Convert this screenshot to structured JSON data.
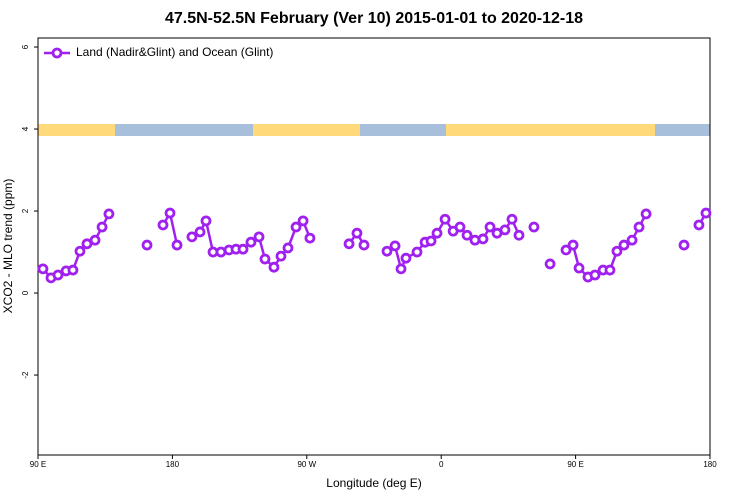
{
  "chart_data": {
    "type": "line",
    "title": "47.5N-52.5N February (Ver 10)   2015-01-01 to 2020-12-18",
    "x_label": "Longitude (deg E)",
    "y_label": "XCO2 - MLO trend (ppm)",
    "x": [
      93.3,
      98.7,
      103.4,
      108.8,
      113.4,
      118.1,
      122.8,
      128.2,
      132.9,
      137.5,
      null,
      163,
      null,
      173.7,
      178.4,
      183.1,
      null,
      193.1,
      198.5,
      202.5,
      207.2,
      212.5,
      217.9,
      222.6,
      227.3,
      232.6,
      238,
      242,
      248,
      252.7,
      257.4,
      262.8,
      267.5,
      272.1,
      null,
      298.3,
      303.6,
      308.3,
      null,
      323.7,
      329.1,
      333.1,
      336.4,
      343.8,
      349.2,
      353.2,
      357.2,
      362.6,
      368,
      372.6,
      377.3,
      382.6,
      388,
      392.7,
      397.4,
      402.7,
      407.4,
      412.1,
      null,
      422.1,
      null,
      432.9,
      null,
      443.6,
      448.3,
      452.3,
      458.3,
      463,
      468.4,
      473,
      477.7,
      482.4,
      487.8,
      492.5,
      497.2,
      null,
      522.6,
      null,
      532.6,
      537.3
    ],
    "series": [
      {
        "name": "Land (Nadir&Glint) and Ocean (Glint)",
        "color": "#a020f0",
        "values": [
          0.59,
          0.37,
          0.44,
          0.54,
          0.56,
          1.02,
          1.2,
          1.29,
          1.61,
          1.93,
          null,
          1.17,
          null,
          1.66,
          1.95,
          1.17,
          null,
          1.37,
          1.49,
          1.76,
          1.0,
          1.0,
          1.05,
          1.07,
          1.07,
          1.24,
          1.37,
          0.83,
          0.63,
          0.9,
          1.1,
          1.61,
          1.76,
          1.34,
          null,
          1.2,
          1.46,
          1.17,
          null,
          1.02,
          1.15,
          0.59,
          0.85,
          1.0,
          1.24,
          1.27,
          1.46,
          1.8,
          1.51,
          1.61,
          1.41,
          1.29,
          1.32,
          1.61,
          1.46,
          1.54,
          1.8,
          1.41,
          null,
          1.61,
          null,
          0.71,
          null,
          1.05,
          1.17,
          0.61,
          0.39,
          0.44,
          0.56,
          0.56,
          1.02,
          1.17,
          1.29,
          1.61,
          1.93,
          null,
          1.17,
          null,
          1.66,
          1.95
        ]
      }
    ],
    "xlim": [
      90,
      540
    ],
    "xticks": [
      {
        "value": 90,
        "label": "90 E"
      },
      180,
      {
        "value": 270,
        "label": "90 W"
      },
      {
        "value": 360,
        "label": "0"
      },
      {
        "value": 450,
        "label": "90 E"
      },
      {
        "value": 540,
        "label": "180"
      }
    ],
    "ylim": [
      -3.95,
      6.22
    ],
    "yticks": [
      -2,
      0,
      2,
      4,
      6
    ],
    "legend": "top-left"
  }
}
